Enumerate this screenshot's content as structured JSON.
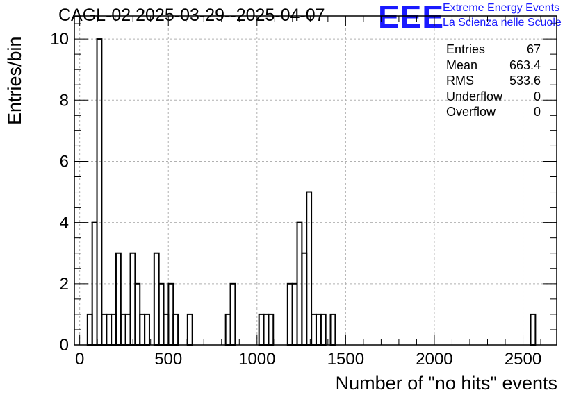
{
  "chart_data": {
    "type": "bar",
    "title": "CAGL-02 2025-03-29--2025-04-07",
    "xlabel": "Number of \"no hits\" events",
    "ylabel": "Entries/bin",
    "xlim": [
      -30,
      2690
    ],
    "ylim": [
      0,
      10.75
    ],
    "grid": true,
    "x_ticks": [
      0,
      500,
      1000,
      1500,
      2000,
      2500
    ],
    "y_ticks": [
      0,
      2,
      4,
      6,
      8,
      10
    ],
    "bin_width": 26.875,
    "bins": [
      {
        "x0": 43.75,
        "value": 1
      },
      {
        "x0": 70.63,
        "value": 4
      },
      {
        "x0": 97.5,
        "value": 10
      },
      {
        "x0": 124.38,
        "value": 1
      },
      {
        "x0": 151.25,
        "value": 1
      },
      {
        "x0": 178.13,
        "value": 1
      },
      {
        "x0": 205.0,
        "value": 3
      },
      {
        "x0": 231.88,
        "value": 1
      },
      {
        "x0": 258.75,
        "value": 1
      },
      {
        "x0": 285.63,
        "value": 3
      },
      {
        "x0": 312.5,
        "value": 2
      },
      {
        "x0": 339.38,
        "value": 1
      },
      {
        "x0": 366.25,
        "value": 1
      },
      {
        "x0": 420.0,
        "value": 3
      },
      {
        "x0": 446.88,
        "value": 2
      },
      {
        "x0": 473.75,
        "value": 1
      },
      {
        "x0": 500.63,
        "value": 2
      },
      {
        "x0": 527.5,
        "value": 1
      },
      {
        "x0": 608.13,
        "value": 1
      },
      {
        "x0": 823.13,
        "value": 1
      },
      {
        "x0": 850.0,
        "value": 2
      },
      {
        "x0": 1011.25,
        "value": 1
      },
      {
        "x0": 1038.13,
        "value": 1
      },
      {
        "x0": 1065.0,
        "value": 1
      },
      {
        "x0": 1172.5,
        "value": 2
      },
      {
        "x0": 1199.38,
        "value": 2
      },
      {
        "x0": 1226.25,
        "value": 4
      },
      {
        "x0": 1253.13,
        "value": 3
      },
      {
        "x0": 1280.0,
        "value": 5
      },
      {
        "x0": 1306.88,
        "value": 1
      },
      {
        "x0": 1333.75,
        "value": 1
      },
      {
        "x0": 1360.63,
        "value": 1
      },
      {
        "x0": 1414.38,
        "value": 1
      },
      {
        "x0": 2543.13,
        "value": 1
      }
    ]
  },
  "stats_box": [
    {
      "label": "Entries",
      "value": "67"
    },
    {
      "label": "Mean",
      "value": "663.4"
    },
    {
      "label": "RMS",
      "value": "533.6"
    },
    {
      "label": "Underflow",
      "value": "0"
    },
    {
      "label": "Overflow",
      "value": "0"
    }
  ],
  "logo": {
    "mark": "EEE",
    "line1": "Extreme Energy Events",
    "line2": "La Scienza nelle Scuole",
    "color": "#1a1aff"
  },
  "colors": {
    "line": "#000000",
    "grid": "#b0b0b0"
  }
}
